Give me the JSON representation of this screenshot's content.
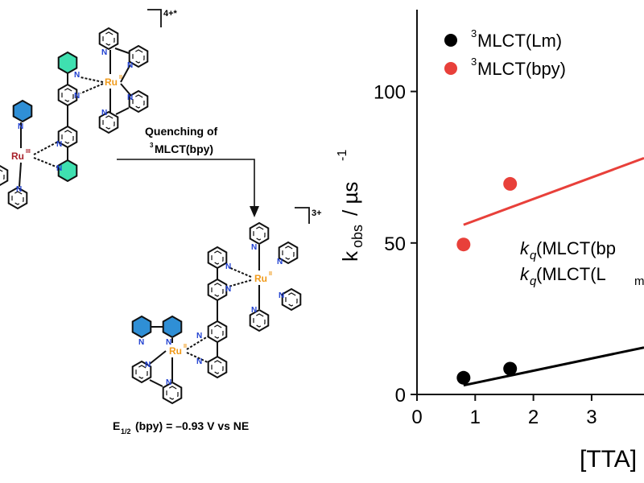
{
  "scheme": {
    "top_charge": "4+*",
    "bottom_charge": "3+",
    "metal_ru_iii": "Ru",
    "metal_ru_iii_ox": "III",
    "metal_ru_ii": "Ru",
    "metal_ru_ii_ox": "II",
    "n_label": "N",
    "arrow_label_line1": "Quenching of",
    "arrow_label_line2_sup": "3",
    "arrow_label_line2": "MLCT(bpy)",
    "potential_prefix": "E",
    "potential_sub": "1/2",
    "potential_rest": "(bpy) = –0.93 V vs NE",
    "colors": {
      "blue_ring": "#2f8fd6",
      "teal_ring": "#3fe0b0",
      "ru_ii": "#f09a1a",
      "ru_iii": "#a8202a",
      "n_atom": "#1f3fd0"
    }
  },
  "chart_data": {
    "type": "scatter",
    "xlabel": "[TTA]",
    "ylabel_main": "k",
    "ylabel_sub": "obs",
    "ylabel_unit": "/ µs",
    "ylabel_exp": "-1",
    "xlim": [
      0,
      3.9
    ],
    "ylim": [
      0,
      127
    ],
    "x_ticks": [
      0,
      1,
      2,
      3
    ],
    "y_ticks": [
      0,
      50,
      100
    ],
    "legend_position": "top-left",
    "series": [
      {
        "name_sup": "3",
        "name": "MLCT(Lm)",
        "color": "#000000",
        "points": [
          [
            0.8,
            5.5
          ],
          [
            1.6,
            8.5
          ]
        ],
        "fit": [
          [
            0.8,
            3.0
          ],
          [
            3.9,
            15.5
          ]
        ]
      },
      {
        "name_sup": "3",
        "name": "MLCT(bpy)",
        "color": "#e8403a",
        "points": [
          [
            0.8,
            49.5
          ],
          [
            1.6,
            69.5
          ]
        ],
        "fit": [
          [
            0.8,
            56.0
          ],
          [
            3.9,
            78.0
          ]
        ]
      }
    ],
    "annotations": [
      {
        "kq": "k",
        "kq_sub": "q",
        "text": " (MLCT(bp"
      },
      {
        "kq": "k",
        "kq_sub": "q",
        "text": " (MLCT(L",
        "sub": "m"
      }
    ]
  }
}
